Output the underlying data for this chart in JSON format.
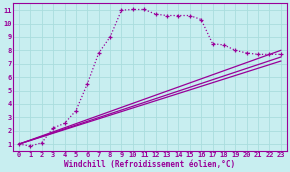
{
  "bg_color": "#c8eef0",
  "line_color": "#990099",
  "grid_color": "#aadddd",
  "xlabel": "Windchill (Refroidissement éolien,°C)",
  "xlabel_color": "#990099",
  "ylabel_color": "#990099",
  "xlim": [
    -0.5,
    23.5
  ],
  "ylim": [
    0.5,
    11.5
  ],
  "xticks": [
    0,
    1,
    2,
    3,
    4,
    5,
    6,
    7,
    8,
    9,
    10,
    11,
    12,
    13,
    14,
    15,
    16,
    17,
    18,
    19,
    20,
    21,
    22,
    23
  ],
  "yticks": [
    1,
    2,
    3,
    4,
    5,
    6,
    7,
    8,
    9,
    10,
    11
  ],
  "dotted_series": {
    "x": [
      0,
      1,
      2,
      3,
      4,
      5,
      6,
      7,
      8,
      9,
      10,
      11,
      12,
      13,
      14,
      15,
      16,
      17,
      18,
      19,
      20,
      21,
      22,
      23
    ],
    "y": [
      1.0,
      0.85,
      1.1,
      2.2,
      2.55,
      3.5,
      5.5,
      7.8,
      9.0,
      11.0,
      11.05,
      11.05,
      10.7,
      10.6,
      10.6,
      10.6,
      10.3,
      8.5,
      8.4,
      8.0,
      7.8,
      7.7,
      7.7,
      7.7
    ]
  },
  "linear_series": [
    {
      "x0": 0,
      "y0": 1.0,
      "x1": 23,
      "y1": 8.0
    },
    {
      "x0": 0,
      "y0": 1.0,
      "x1": 23,
      "y1": 7.5
    },
    {
      "x0": 0,
      "y0": 1.0,
      "x1": 23,
      "y1": 7.2
    }
  ]
}
